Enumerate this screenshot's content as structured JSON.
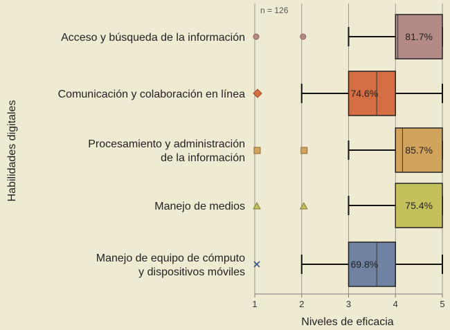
{
  "chart_data": {
    "type": "boxplot",
    "title": "",
    "sample_note": "n = 126",
    "xlabel": "Niveles de eficacia",
    "ylabel": "Habilidades digitales",
    "xlim": [
      1,
      5
    ],
    "xticks": [
      "1",
      "2",
      "3",
      "4",
      "5"
    ],
    "grid": "vertical",
    "series": [
      {
        "label_lines": [
          "Acceso y búsqueda de la información"
        ],
        "whisker_low": 3,
        "q1": 4,
        "median": 4.05,
        "q3": 5,
        "whisker_high": 5,
        "percent_label": "81.7%",
        "outliers": [
          1,
          2
        ],
        "marker": "circle",
        "color": "#b48a86"
      },
      {
        "label_lines": [
          "Comunicación y colaboración en línea"
        ],
        "whisker_low": 2,
        "q1": 3,
        "median": 3.6,
        "q3": 4,
        "whisker_high": 5,
        "percent_label": "74.6%",
        "outliers": [
          1
        ],
        "marker": "diamond",
        "color": "#d66e43"
      },
      {
        "label_lines": [
          "Procesamiento y administración",
          "de la información"
        ],
        "whisker_low": 3,
        "q1": 4,
        "median": 4.15,
        "q3": 5,
        "whisker_high": 5,
        "percent_label": "85.7%",
        "outliers": [
          1,
          2
        ],
        "marker": "square",
        "color": "#d1a35c"
      },
      {
        "label_lines": [
          "Manejo de medios"
        ],
        "whisker_low": 3,
        "q1": 4,
        "median": 4,
        "q3": 5,
        "whisker_high": 5,
        "percent_label": "75.4%",
        "outliers": [
          1,
          2
        ],
        "marker": "triangle",
        "color": "#c4c15c"
      },
      {
        "label_lines": [
          "Manejo de equipo de cómputo",
          "y dispositivos móviles"
        ],
        "whisker_low": 2,
        "q1": 3,
        "median": 3.6,
        "q3": 4,
        "whisker_high": 5,
        "percent_label": "69.8%",
        "outliers": [
          1
        ],
        "marker": "x",
        "color": "#6f82a2"
      }
    ]
  }
}
